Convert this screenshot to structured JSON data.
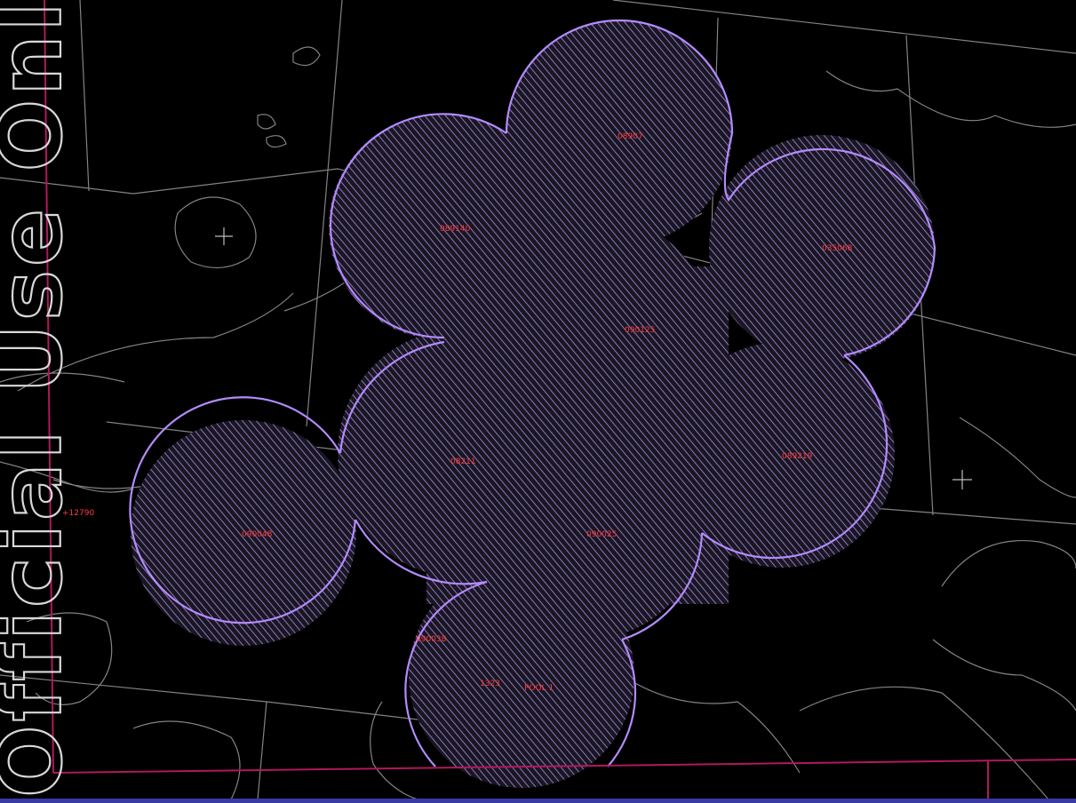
{
  "map": {
    "background": "#000000",
    "line_color": "#bdbdbd",
    "boundary_color": "#b0185e",
    "zone_fill": "#9b84d8",
    "zone_outline": "#b38bff",
    "label_color": "#ff3b3b",
    "cross_markers": 2,
    "well_labels": [
      {
        "id": "w1",
        "text": "08907"
      },
      {
        "id": "w2",
        "text": "089140"
      },
      {
        "id": "w3",
        "text": "035068"
      },
      {
        "id": "w4",
        "text": "090125"
      },
      {
        "id": "w5",
        "text": "089219"
      },
      {
        "id": "w6",
        "text": "08211"
      },
      {
        "id": "w7",
        "text": "+12790"
      },
      {
        "id": "w8",
        "text": "090048"
      },
      {
        "id": "w9",
        "text": "090025"
      },
      {
        "id": "w10",
        "text": "090038"
      },
      {
        "id": "w11",
        "text": "1323"
      },
      {
        "id": "w12",
        "text": "POOL 1"
      }
    ],
    "edge_text": "Official Use Only"
  }
}
